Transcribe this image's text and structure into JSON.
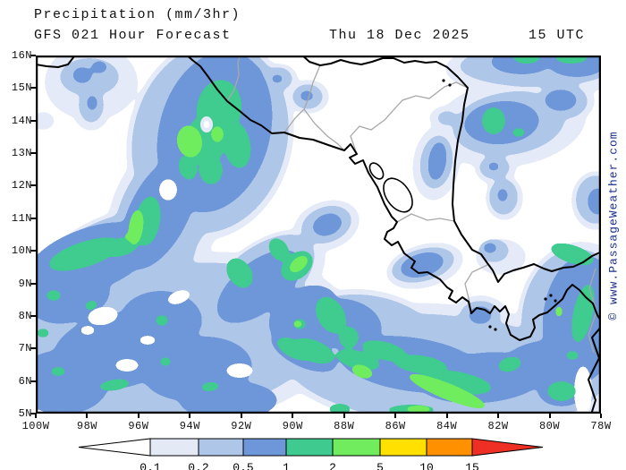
{
  "header": {
    "product": "Precipitation (mm/3hr)",
    "model_run": "GFS 021 Hour Forecast",
    "date": "Thu 18 Dec 2025",
    "time": "15 UTC"
  },
  "map": {
    "watermark": "© www.PassageWeather.com",
    "lat_ticks": [
      "16N",
      "15N",
      "14N",
      "13N",
      "12N",
      "11N",
      "10N",
      "9N",
      "8N",
      "7N",
      "6N",
      "5N"
    ],
    "lon_ticks": [
      "100W",
      "98W",
      "96W",
      "94W",
      "92W",
      "90W",
      "88W",
      "86W",
      "84W",
      "82W",
      "80W",
      "78W"
    ],
    "colors": {
      "l1": "#e4eaf7",
      "l2": "#aec6e8",
      "l3": "#6e97d9",
      "l4": "#3fcb8f",
      "l5": "#70ec5e",
      "coast": "#000000",
      "border": "#a8a8a8",
      "lake": "#ffffff",
      "frame": "#000000"
    },
    "blobs": {
      "l1": [
        [
          195,
          93,
          92,
          115,
          15
        ],
        [
          148,
          172,
          62,
          95,
          25
        ],
        [
          62,
          30,
          52,
          42,
          0
        ],
        [
          62,
          56,
          22,
          28,
          0
        ],
        [
          8,
          73,
          13,
          10,
          0
        ],
        [
          247,
          18,
          19,
          15,
          0
        ],
        [
          272,
          26,
          21,
          17,
          0
        ],
        [
          305,
          46,
          23,
          19,
          0
        ],
        [
          560,
          15,
          102,
          32,
          0
        ],
        [
          530,
          76,
          86,
          48,
          -8
        ],
        [
          590,
          51,
          35,
          25,
          0
        ],
        [
          514,
          126,
          23,
          18,
          0
        ],
        [
          524,
          159,
          21,
          25,
          0
        ],
        [
          626,
          162,
          27,
          33,
          0
        ],
        [
          448,
          120,
          26,
          42,
          8
        ],
        [
          460,
          70,
          20,
          14,
          0
        ],
        [
          325,
          190,
          38,
          27,
          -20
        ],
        [
          160,
          320,
          195,
          98,
          -8
        ],
        [
          460,
          350,
          195,
          72,
          5
        ],
        [
          610,
          300,
          72,
          92,
          0
        ],
        [
          90,
          240,
          112,
          62,
          -25
        ],
        [
          255,
          255,
          80,
          45,
          -38
        ],
        [
          497,
          292,
          32,
          24,
          0
        ],
        [
          435,
          235,
          44,
          24,
          -15
        ],
        [
          588,
          375,
          42,
          30,
          0
        ],
        [
          520,
          225,
          28,
          20,
          0
        ],
        [
          370,
          330,
          100,
          68,
          10
        ],
        [
          505,
          25,
          14,
          22,
          0
        ]
      ],
      "l2": [
        [
          195,
          92,
          86,
          108,
          15
        ],
        [
          146,
          172,
          50,
          85,
          27
        ],
        [
          60,
          24,
          33,
          21,
          0
        ],
        [
          62,
          55,
          14,
          20,
          0
        ],
        [
          246,
          18,
          14,
          11,
          0
        ],
        [
          271,
          26,
          16,
          13,
          0
        ],
        [
          304,
          46,
          17,
          14,
          0
        ],
        [
          560,
          12,
          86,
          23,
          0
        ],
        [
          529,
          76,
          63,
          35,
          -8
        ],
        [
          589,
          51,
          28,
          20,
          0
        ],
        [
          513,
          125,
          17,
          13,
          0
        ],
        [
          523,
          158,
          16,
          20,
          0
        ],
        [
          626,
          161,
          22,
          27,
          0
        ],
        [
          448,
          119,
          18,
          30,
          8
        ],
        [
          460,
          70,
          11,
          8,
          0
        ],
        [
          325,
          189,
          29,
          20,
          -20
        ],
        [
          150,
          320,
          178,
          86,
          -8
        ],
        [
          455,
          352,
          178,
          62,
          5
        ],
        [
          605,
          300,
          62,
          84,
          0
        ],
        [
          85,
          238,
          102,
          54,
          -25
        ],
        [
          252,
          252,
          70,
          37,
          -38
        ],
        [
          370,
          330,
          92,
          62,
          10
        ],
        [
          497,
          291,
          23,
          17,
          0
        ],
        [
          433,
          234,
          36,
          18,
          -15
        ],
        [
          588,
          374,
          35,
          24,
          0
        ],
        [
          512,
          218,
          17,
          13,
          0
        ]
      ],
      "l3": [
        [
          200,
          85,
          62,
          92,
          15
        ],
        [
          138,
          175,
          33,
          70,
          27
        ],
        [
          52,
          22,
          11,
          9,
          0
        ],
        [
          71,
          13,
          9,
          7,
          0
        ],
        [
          63,
          53,
          6,
          9,
          0
        ],
        [
          246,
          17,
          6,
          5,
          0
        ],
        [
          270,
          26,
          7,
          5,
          0
        ],
        [
          303,
          45,
          8,
          6,
          0
        ],
        [
          543,
          7,
          34,
          14,
          0
        ],
        [
          605,
          9,
          32,
          15,
          0
        ],
        [
          521,
          75,
          42,
          24,
          -5
        ],
        [
          587,
          50,
          18,
          12,
          0
        ],
        [
          512,
          124,
          7,
          5,
          0
        ],
        [
          522,
          156,
          6,
          8,
          0
        ],
        [
          628,
          163,
          11,
          15,
          0
        ],
        [
          449,
          118,
          10,
          22,
          8
        ],
        [
          326,
          189,
          17,
          12,
          -20
        ],
        [
          60,
          228,
          76,
          35,
          -20
        ],
        [
          38,
          270,
          46,
          28,
          -15
        ],
        [
          90,
          330,
          72,
          42,
          -10
        ],
        [
          30,
          365,
          52,
          36,
          0
        ],
        [
          140,
          296,
          46,
          33,
          0
        ],
        [
          180,
          350,
          62,
          36,
          -5
        ],
        [
          250,
          258,
          56,
          28,
          -38
        ],
        [
          300,
          290,
          42,
          30,
          -30
        ],
        [
          300,
          330,
          40,
          18,
          25
        ],
        [
          345,
          300,
          42,
          28,
          10
        ],
        [
          420,
          345,
          82,
          30,
          8
        ],
        [
          500,
          360,
          72,
          28,
          -5
        ],
        [
          560,
          345,
          46,
          25,
          -15
        ],
        [
          610,
          295,
          43,
          72,
          5
        ],
        [
          588,
          374,
          27,
          18,
          0
        ],
        [
          497,
          290,
          13,
          10,
          0
        ],
        [
          432,
          234,
          25,
          13,
          -15
        ],
        [
          215,
          385,
          55,
          22,
          0
        ],
        [
          508,
          215,
          8,
          6,
          0
        ]
      ],
      "holes": [
        [
          75,
          291,
          17,
          10,
          -10
        ],
        [
          102,
          346,
          13,
          7,
          0
        ],
        [
          125,
          318,
          9,
          5,
          0
        ],
        [
          58,
          307,
          8,
          5,
          0
        ],
        [
          160,
          270,
          13,
          7,
          -20
        ],
        [
          612,
          375,
          10,
          28,
          0
        ],
        [
          228,
          352,
          15,
          8,
          0
        ],
        [
          398,
          333,
          12,
          8,
          0
        ],
        [
          148,
          150,
          10,
          12,
          0
        ]
      ],
      "l4": [
        [
          205,
          60,
          25,
          33,
          8
        ],
        [
          190,
          95,
          22,
          28,
          0
        ],
        [
          225,
          100,
          15,
          26,
          -10
        ],
        [
          196,
          128,
          13,
          16,
          0
        ],
        [
          170,
          125,
          10,
          14,
          -15
        ],
        [
          125,
          185,
          14,
          28,
          10
        ],
        [
          119,
          197,
          8,
          13,
          20
        ],
        [
          549,
          2,
          15,
          7,
          0
        ],
        [
          599,
          2,
          18,
          7,
          0
        ],
        [
          512,
          73,
          13,
          15,
          0
        ],
        [
          540,
          86,
          7,
          5,
          0
        ],
        [
          600,
          222,
          25,
          10,
          18
        ],
        [
          612,
          288,
          11,
          33,
          12
        ],
        [
          600,
          335,
          7,
          5,
          0
        ],
        [
          55,
          222,
          42,
          14,
          -18
        ],
        [
          95,
          214,
          21,
          10,
          -15
        ],
        [
          20,
          268,
          8,
          6,
          0
        ],
        [
          62,
          279,
          7,
          5,
          -20
        ],
        [
          8,
          310,
          7,
          5,
          0
        ],
        [
          25,
          353,
          8,
          5,
          0
        ],
        [
          88,
          368,
          17,
          6,
          -8
        ],
        [
          145,
          342,
          6,
          5,
          0
        ],
        [
          195,
          370,
          10,
          5,
          -5
        ],
        [
          141,
          296,
          7,
          6,
          0
        ],
        [
          228,
          243,
          13,
          18,
          -35
        ],
        [
          272,
          217,
          10,
          14,
          -35
        ],
        [
          292,
          235,
          20,
          14,
          -40
        ],
        [
          290,
          328,
          22,
          10,
          25
        ],
        [
          295,
          300,
          7,
          6,
          0
        ],
        [
          330,
          290,
          15,
          22,
          -30
        ],
        [
          350,
          315,
          11,
          12,
          0
        ],
        [
          390,
          330,
          26,
          10,
          15
        ],
        [
          310,
          330,
          25,
          12,
          20
        ],
        [
          360,
          340,
          25,
          10,
          15
        ],
        [
          430,
          345,
          30,
          10,
          8
        ],
        [
          470,
          365,
          40,
          12,
          10
        ],
        [
          530,
          345,
          13,
          8,
          -15
        ],
        [
          340,
          395,
          12,
          6,
          0
        ],
        [
          420,
          396,
          26,
          6,
          0
        ],
        [
          588,
          375,
          16,
          11,
          0
        ]
      ],
      "l5": [
        [
          108,
          201,
          9,
          5,
          -20
        ],
        [
          112,
          192,
          8,
          20,
          8
        ],
        [
          172,
          96,
          14,
          18,
          -10
        ],
        [
          203,
          88,
          7,
          9,
          0
        ],
        [
          294,
          233,
          12,
          7,
          -40
        ],
        [
          293,
          300,
          5,
          4,
          0
        ],
        [
          365,
          353,
          12,
          7,
          20
        ],
        [
          460,
          375,
          46,
          9,
          22
        ],
        [
          585,
          286,
          4,
          6,
          0
        ],
        [
          428,
          395,
          14,
          4,
          0
        ]
      ],
      "post_l4": [
        [
          "l1",
          191,
          77,
          7,
          9,
          0
        ],
        [
          "white",
          191,
          77,
          3,
          4,
          0
        ]
      ]
    },
    "coast_paths": [
      "M 0,10 L 12,12 L 25,13 L 36,10 L 46,-3",
      "M 166,-3 L 175,5 L 184,12 L 193,24 L 203,38 L 214,51 L 228,62 L 240,72 L 252,78 L 264,87 L 278,86 L 295,92 L 310,94 L 330,101 L 345,106 L 352,99 L 359,110 L 351,114 L 357,121 L 366,117 L 372,131 L 382,147 L 390,166 L 398,180 L 404,186 L 400,193 L 393,197 L 390,205 L 398,212 L 405,208 L 412,221 L 424,230 L 420,237 L 428,243 L 438,242 L 452,250 L 460,259 L 466,263 L 462,271 L 470,276 L 477,270 L 484,275 L 487,288 L 493,282 L 502,284 L 508,288 L 513,280 L 519,286 L 525,280 L 529,289 L 526,299 L 531,312 L 541,318 L 553,314 L 558,304 L 556,295 L 563,290 L 572,287 L 580,280 L 589,272 L 594,262 L 600,256 L 608,262 L 615,270 L 623,277 L 628,290 L 633,298",
      "M 633,302 L 622,315 L 630,338 L 618,362 L 626,385 L 621,401",
      "M 296,-2 L 306,7 L 318,11 L 330,9 L 341,5 L 352,8 L 364,10 L 376,7 L 388,3 L 400,3 L 412,8 L 424,6 L 436,8 L 448,7 L 460,13 L 472,24 L 483,36 L 479,55 L 477,73 L 472,95 L 469,118 L 467,145 L 466,166 L 468,185 L 476,200 L 488,217 L 498,222 L 505,232 L 511,240 L 517,253 L 524,244 L 534,240 L 545,237 L 557,233 L 568,238 L 577,241 L 590,237 L 601,236 L 612,231 L 622,224 L 633,219"
    ],
    "border_paths": [
      "M 214,51 L 222,38 L 227,22 L 226,8 L 229,-2",
      "M 318,11 L 310,30 L 305,48 L 300,60 L 290,70 L 278,86",
      "M 300,60 L 312,76 L 326,90 L 338,99 L 345,106",
      "M 359,110 L 352,90 L 362,79 L 375,83 L 390,72 L 410,50 L 425,45 L 440,48 L 457,35 L 470,30 L 483,36",
      "M 404,186 L 420,177 L 438,184 L 452,182 L 468,185",
      "M 505,234 L 488,242 L 480,255 L 484,271 L 487,287",
      "M 626,238 L 619,260 L 627,286 L 618,312 L 624,332"
    ],
    "lakes": [
      [
        381,
        129,
        6,
        10,
        -35
      ],
      [
        405,
        156,
        13,
        21,
        -35
      ]
    ],
    "islands": [
      [
        570,
        272
      ],
      [
        576,
        268
      ],
      [
        581,
        274
      ],
      [
        508,
        303
      ],
      [
        514,
        306
      ],
      [
        456,
        28
      ],
      [
        463,
        33
      ]
    ]
  },
  "legend": {
    "values": [
      "0.1",
      "0.2",
      "0.5",
      "1",
      "2",
      "5",
      "10",
      "15"
    ],
    "segment_colors": [
      "#e4e9f6",
      "#aec6e8",
      "#6e97d9",
      "#3fcb8f",
      "#70ec5e",
      "#ffe000",
      "#ff9000"
    ],
    "arrow_left_color": "#ffffff",
    "arrow_right_color": "#ee3024"
  }
}
